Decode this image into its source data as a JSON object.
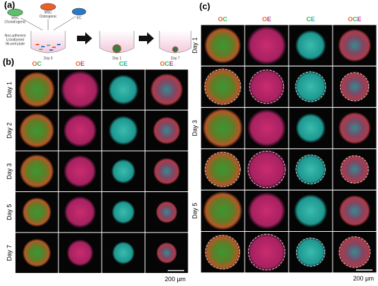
{
  "panel_a": {
    "label": "(a)",
    "cell_types": [
      [
        "MSC",
        "Chondrogenic"
      ],
      [
        "MSC",
        "Osteogenic"
      ],
      [
        "EC"
      ]
    ],
    "plate": [
      "Non-adherent",
      "U-bottomed",
      "96-well plate"
    ],
    "days": [
      "Day 0",
      "Day 1",
      "Day 7"
    ]
  },
  "panel_b": {
    "label": "(b)",
    "columns": [
      "OC",
      "OE",
      "CE",
      "OCE"
    ],
    "rows": [
      "Day 1",
      "Day 2",
      "Day 3",
      "Day 5",
      "Day 7"
    ],
    "scale": "200 µm"
  },
  "panel_c": {
    "label": "(c)",
    "columns": [
      "OC",
      "OE",
      "CE",
      "OCE"
    ],
    "rows": [
      "Day 1",
      "Day 3",
      "Day 5"
    ],
    "scale": "200 µm"
  }
}
